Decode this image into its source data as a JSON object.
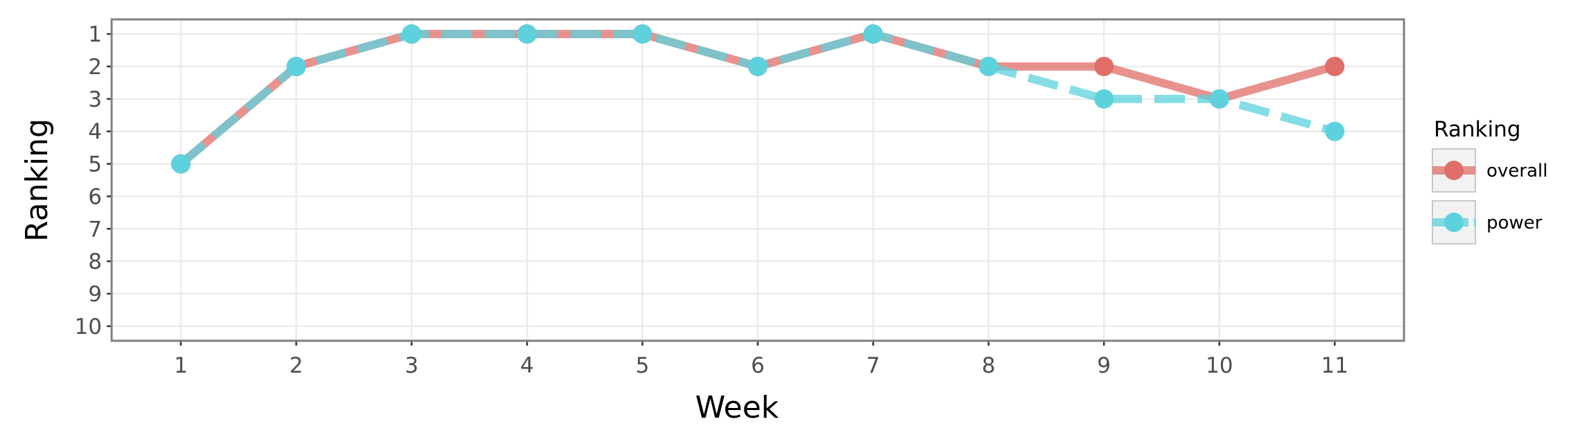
{
  "chart_data": {
    "type": "line",
    "xlabel": "Week",
    "ylabel": "Ranking",
    "x": [
      1,
      2,
      3,
      4,
      5,
      6,
      7,
      8,
      9,
      10,
      11
    ],
    "xlim": [
      0.4,
      11.6
    ],
    "ylim": [
      10.45,
      0.55
    ],
    "y_reversed": true,
    "x_ticks": [
      "1",
      "2",
      "3",
      "4",
      "5",
      "6",
      "7",
      "8",
      "9",
      "10",
      "11"
    ],
    "y_ticks": [
      "1",
      "2",
      "3",
      "4",
      "5",
      "6",
      "7",
      "8",
      "9",
      "10"
    ],
    "grid": true,
    "legend": {
      "title": "Ranking",
      "placement": "right"
    },
    "series": [
      {
        "name": "overall",
        "values": [
          5,
          2,
          1,
          1,
          1,
          2,
          1,
          2,
          2,
          3,
          2
        ],
        "color": "#e06d68",
        "linestyle": "solid"
      },
      {
        "name": "power",
        "values": [
          5,
          2,
          1,
          1,
          1,
          2,
          1,
          2,
          3,
          3,
          4
        ],
        "color": "#5dd2dc",
        "linestyle": "dashed"
      }
    ]
  }
}
